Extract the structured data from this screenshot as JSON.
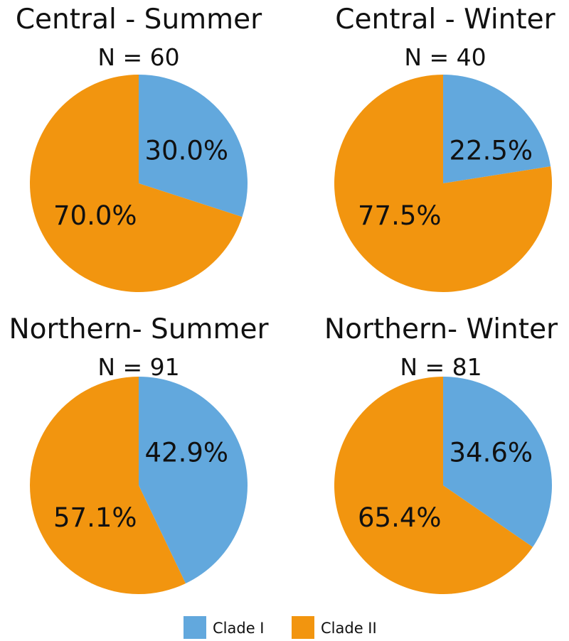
{
  "chart_data": [
    {
      "type": "pie",
      "title": "Central - Summer",
      "subtitle": "N = 60",
      "slices": [
        {
          "name": "Clade I",
          "value": 30.0,
          "label": "30.0%"
        },
        {
          "name": "Clade II",
          "value": 70.0,
          "label": "70.0%"
        }
      ]
    },
    {
      "type": "pie",
      "title": "Central - Winter",
      "subtitle": "N = 40",
      "slices": [
        {
          "name": "Clade I",
          "value": 22.5,
          "label": "22.5%"
        },
        {
          "name": "Clade II",
          "value": 77.5,
          "label": "77.5%"
        }
      ]
    },
    {
      "type": "pie",
      "title": "Northern- Summer",
      "subtitle": "N = 91",
      "slices": [
        {
          "name": "Clade I",
          "value": 42.9,
          "label": "42.9%"
        },
        {
          "name": "Clade II",
          "value": 57.1,
          "label": "57.1%"
        }
      ]
    },
    {
      "type": "pie",
      "title": "Northern- Winter",
      "subtitle": "N = 81",
      "slices": [
        {
          "name": "Clade I",
          "value": 34.6,
          "label": "34.6%"
        },
        {
          "name": "Clade II",
          "value": 65.4,
          "label": "65.4%"
        }
      ]
    }
  ],
  "legend": {
    "placement": "bottom",
    "items": [
      {
        "label": "Clade I",
        "color": "#62A8DD"
      },
      {
        "label": "Clade II",
        "color": "#F2950F"
      }
    ]
  }
}
